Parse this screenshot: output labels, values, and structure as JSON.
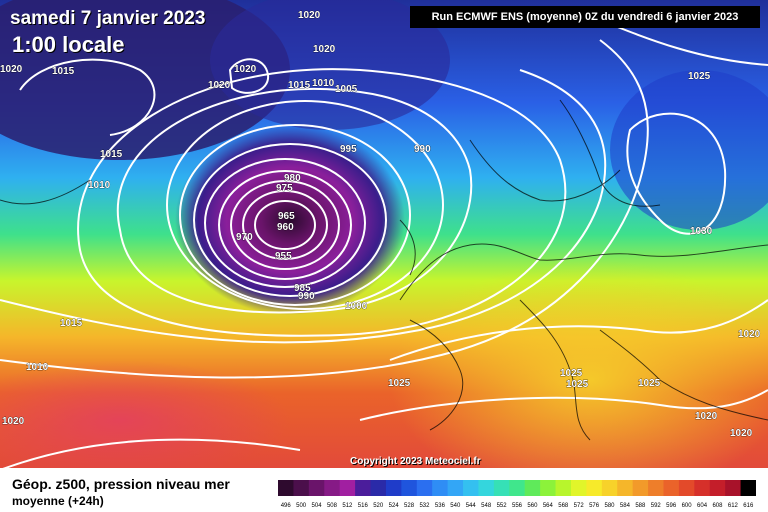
{
  "header": {
    "date": "samedi 7 janvier 2023",
    "time": "1:00 locale",
    "run": "Run ECMWF ENS (moyenne) 0Z du vendredi 6 janvier 2023"
  },
  "copyright": "Copyright 2023 Meteociel.fr",
  "footer": {
    "title": "Géop. z500, pression niveau mer",
    "subtitle": "moyenne  (+24h)"
  },
  "pressure_labels": [
    {
      "text": "1020"
    },
    {
      "text": "1015"
    },
    {
      "text": "1020"
    },
    {
      "text": "1020"
    },
    {
      "text": "1020"
    },
    {
      "text": "1020"
    },
    {
      "text": "1015"
    },
    {
      "text": "1010"
    },
    {
      "text": "1005"
    },
    {
      "text": "1025"
    },
    {
      "text": "995"
    },
    {
      "text": "990"
    },
    {
      "text": "1015"
    },
    {
      "text": "1010"
    },
    {
      "text": "980"
    },
    {
      "text": "975"
    },
    {
      "text": "965"
    },
    {
      "text": "960"
    },
    {
      "text": "970"
    },
    {
      "text": "955"
    },
    {
      "text": "985"
    },
    {
      "text": "990"
    },
    {
      "text": "1000"
    },
    {
      "text": "1030"
    },
    {
      "text": "1015"
    },
    {
      "text": "1010"
    },
    {
      "text": "1025"
    },
    {
      "text": "1025"
    },
    {
      "text": "1025"
    },
    {
      "text": "1025"
    },
    {
      "text": "1020"
    },
    {
      "text": "1020"
    },
    {
      "text": "1020"
    },
    {
      "text": "1020"
    }
  ],
  "legend": {
    "values": [
      "496",
      "500",
      "504",
      "508",
      "512",
      "516",
      "520",
      "524",
      "528",
      "532",
      "536",
      "540",
      "544",
      "548",
      "552",
      "556",
      "560",
      "564",
      "568",
      "572",
      "576",
      "580",
      "584",
      "588",
      "592",
      "596",
      "600",
      "604",
      "608",
      "612",
      "616"
    ],
    "colors": [
      "#2e0a2e",
      "#4b0f4b",
      "#6a146a",
      "#861a86",
      "#a11fa1",
      "#4b1d9b",
      "#2a2aa8",
      "#1f3cc9",
      "#1f55dd",
      "#2b6ff0",
      "#2f8df5",
      "#33a6f6",
      "#34c0f0",
      "#34d6dd",
      "#36e0b6",
      "#40e68c",
      "#5fea5a",
      "#8cf23a",
      "#b8f52c",
      "#e1f52a",
      "#f7ea2a",
      "#f7d22a",
      "#f5b62a",
      "#f29a2a",
      "#ee7e2a",
      "#ea632a",
      "#e34a2a",
      "#d6302a",
      "#c41e2a",
      "#a8122a",
      "#000000"
    ]
  }
}
